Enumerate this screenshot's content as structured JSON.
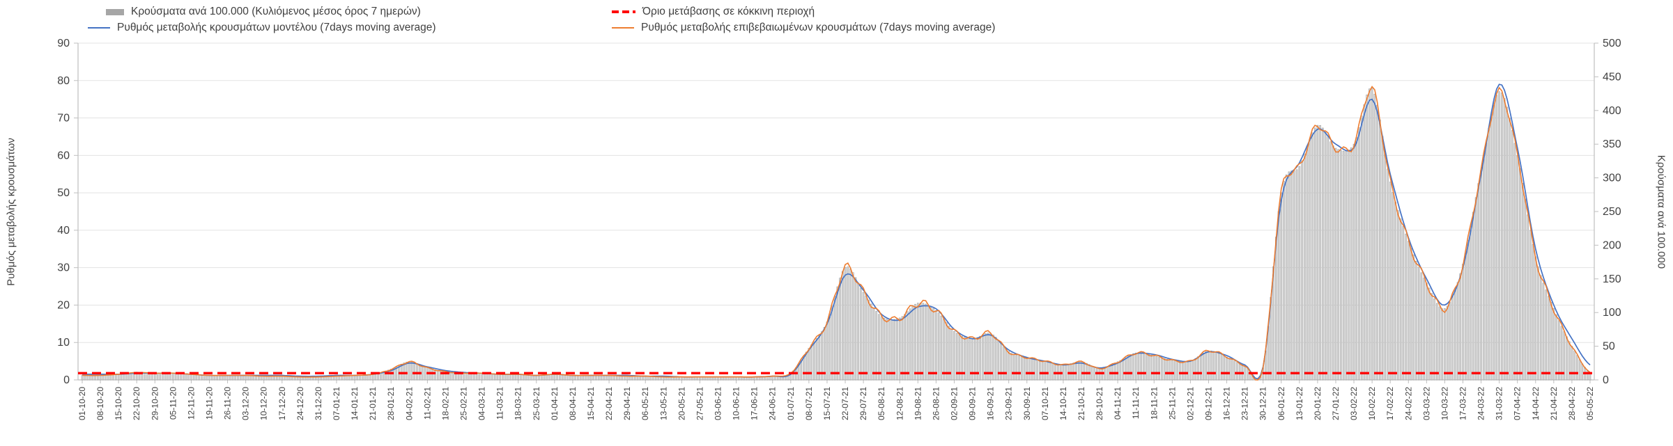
{
  "page": {
    "background": "#ffffff"
  },
  "legend": {
    "position": "top",
    "items": [
      {
        "label": "Κρούσματα ανά 100.000 (Κυλιόμενος μέσος όρος 7 ημερών)",
        "marker": "bar",
        "color": "#a6a6a6"
      },
      {
        "label": "Όριο μετάβασης σε κόκκινη περιοχή",
        "marker": "dashed-line",
        "color": "#ff0000"
      },
      {
        "label": "Ρυθμός μεταβολής κρουσμάτων μοντέλου (7days moving average)",
        "marker": "line",
        "color": "#4472c4"
      },
      {
        "label": "Ρυθμός μεταβολής επιβεβαιωμένων κρουσμάτων (7days moving average)",
        "marker": "line",
        "color": "#ed7d31"
      }
    ]
  },
  "chart_data": {
    "type": "combo-bar-line",
    "grid": true,
    "legend_position": "top",
    "left_axis": {
      "label": "Ρυθμός μεταβολής κρουσμάτων",
      "min": 0,
      "max": 90,
      "step": 10
    },
    "right_axis": {
      "label": "Κρούσματα ανά 100.000",
      "min": 0,
      "max": 500,
      "step": 50
    },
    "x": [
      "01-10-20",
      "08-10-20",
      "15-10-20",
      "22-10-20",
      "29-10-20",
      "05-11-20",
      "12-11-20",
      "19-11-20",
      "26-11-20",
      "03-12-20",
      "10-12-20",
      "17-12-20",
      "24-12-20",
      "31-12-20",
      "07-01-21",
      "14-01-21",
      "21-01-21",
      "28-01-21",
      "04-02-21",
      "11-02-21",
      "18-02-21",
      "25-02-21",
      "04-03-21",
      "11-03-21",
      "18-03-21",
      "25-03-21",
      "01-04-21",
      "08-04-21",
      "15-04-21",
      "22-04-21",
      "29-04-21",
      "06-05-21",
      "13-05-21",
      "20-05-21",
      "27-05-21",
      "03-06-21",
      "10-06-21",
      "17-06-21",
      "24-06-21",
      "01-07-21",
      "08-07-21",
      "15-07-21",
      "22-07-21",
      "29-07-21",
      "05-08-21",
      "12-08-21",
      "19-08-21",
      "26-08-21",
      "02-09-21",
      "09-09-21",
      "16-09-21",
      "23-09-21",
      "30-09-21",
      "07-10-21",
      "14-10-21",
      "21-10-21",
      "28-10-21",
      "04-11-21",
      "11-11-21",
      "18-11-21",
      "25-11-21",
      "02-12-21",
      "09-12-21",
      "16-12-21",
      "23-12-21",
      "30-12-21",
      "06-01-22",
      "13-01-22",
      "20-01-22",
      "27-01-22",
      "03-02-22",
      "10-02-22",
      "17-02-22",
      "24-02-22",
      "03-03-22",
      "10-03-22",
      "17-03-22",
      "24-03-22",
      "31-03-22",
      "07-04-22",
      "14-04-22",
      "21-04-22",
      "28-04-22",
      "05-05-22"
    ],
    "series": [
      {
        "name": "Κρούσματα ανά 100.000 (Κυλιόμενος μέσος όρος 7 ημερών)",
        "type": "bar",
        "axis": "right",
        "fill": "#dcdcdc",
        "stroke": "#9a9a9a",
        "values": [
          7,
          7,
          8,
          11,
          10,
          10,
          8,
          7,
          7,
          7,
          6,
          6,
          4,
          4,
          6,
          7,
          8,
          16,
          27,
          18,
          12,
          10,
          10,
          8,
          8,
          7,
          8,
          7,
          7,
          7,
          6,
          6,
          4,
          4,
          4,
          4,
          4,
          4,
          6,
          10,
          47,
          86,
          167,
          130,
          94,
          92,
          114,
          103,
          72,
          61,
          69,
          42,
          33,
          28,
          22,
          27,
          17,
          27,
          40,
          36,
          29,
          28,
          43,
          34,
          21,
          18,
          278,
          317,
          378,
          344,
          350,
          433,
          294,
          206,
          144,
          106,
          172,
          311,
          428,
          333,
          183,
          106,
          50,
          11
        ]
      },
      {
        "name": "Ρυθμός μεταβολής κρουσμάτων μοντέλου (7days moving average)",
        "type": "line",
        "axis": "left",
        "color": "#4472c4",
        "values": [
          1.5,
          1.5,
          1.5,
          1.8,
          1.8,
          1.8,
          1.5,
          1.2,
          1.2,
          1.2,
          1.2,
          1.2,
          1,
          1,
          1.2,
          1.2,
          1.5,
          2.5,
          4.5,
          3.5,
          2.5,
          2,
          1.8,
          1.5,
          1.5,
          1.2,
          1.5,
          1.2,
          1.2,
          1.2,
          1.2,
          1,
          1,
          0.8,
          0.8,
          0.8,
          0.8,
          0.8,
          1,
          1.5,
          8,
          15,
          28,
          24,
          17.5,
          16,
          19.5,
          19,
          13.5,
          11,
          12,
          8,
          6,
          5,
          4,
          4.5,
          3.2,
          4.5,
          7,
          6.8,
          5.5,
          5,
          7.5,
          6.5,
          4,
          3.5,
          48,
          58,
          67,
          63,
          62,
          75,
          55,
          38,
          27,
          20,
          30,
          55,
          79,
          62,
          35,
          20,
          11,
          4
        ]
      },
      {
        "name": "Ρυθμός μεταβολής επιβεβαιωμένων κρουσμάτων (7days moving average)",
        "type": "line",
        "axis": "left",
        "color": "#ed7d31",
        "values": [
          1.2,
          1.2,
          1.5,
          2,
          1.8,
          1.8,
          1.5,
          1.2,
          1.2,
          1.2,
          1,
          1,
          0.8,
          0.8,
          1,
          1.2,
          1.5,
          2.8,
          4.8,
          3.2,
          2.2,
          1.8,
          1.8,
          1.5,
          1.5,
          1.2,
          1.5,
          1.2,
          1.2,
          1.2,
          1,
          1,
          0.8,
          0.8,
          0.8,
          0.8,
          0.8,
          0.8,
          1,
          1.8,
          8.5,
          15.5,
          30,
          23.5,
          17,
          16.5,
          20.5,
          18.5,
          13,
          11,
          12.5,
          7.5,
          6,
          5,
          4,
          4.8,
          3,
          4.8,
          7.2,
          6.5,
          5.2,
          5,
          7.8,
          6.2,
          3.8,
          3.2,
          50,
          57,
          68,
          62,
          63,
          78,
          53,
          37,
          26,
          19,
          31,
          56,
          77,
          60,
          33,
          19,
          9,
          2
        ]
      },
      {
        "name": "Όριο μετάβασης σε κόκκινη περιοχή",
        "type": "threshold-line",
        "axis": "right",
        "color": "#ff0000",
        "value": 10
      }
    ]
  }
}
